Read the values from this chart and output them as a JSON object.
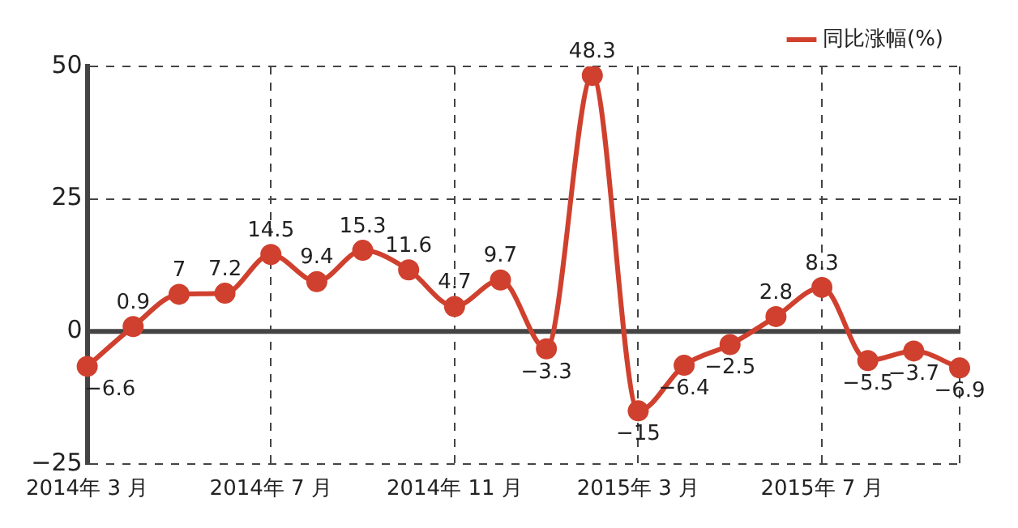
{
  "chart_data": {
    "type": "line",
    "categories": [
      "2014年 3 月",
      null,
      null,
      null,
      "2014年 7 月",
      null,
      null,
      null,
      "2014年 11 月",
      null,
      null,
      null,
      "2015年 3 月",
      null,
      null,
      null,
      "2015年 7 月",
      null,
      null,
      null
    ],
    "series": [
      {
        "name": "同比涨幅(%)",
        "color": "#d0402e",
        "values": [
          -6.6,
          0.9,
          7,
          7.2,
          14.5,
          9.4,
          15.3,
          11.6,
          4.7,
          9.7,
          -3.3,
          48.3,
          -15,
          -6.4,
          -2.5,
          2.8,
          8.3,
          -5.5,
          -3.7,
          -6.9
        ],
        "value_labels": [
          "−6.6",
          "0.9",
          "7",
          "7.2",
          "14.5",
          "9.4",
          "15.3",
          "11.6",
          "4.7",
          "9.7",
          "−3.3",
          "48.3",
          "−15",
          "−6.4",
          "−2.5",
          "2.8",
          "8.3",
          "−5.5",
          "−3.7",
          "−6.9"
        ]
      }
    ],
    "ylim": [
      -25,
      50
    ],
    "yticks": [
      {
        "value": -25,
        "label": "−25"
      },
      0,
      25,
      50
    ],
    "grid": true,
    "legend": "top right",
    "marker": "circle",
    "line_style": "solid"
  }
}
